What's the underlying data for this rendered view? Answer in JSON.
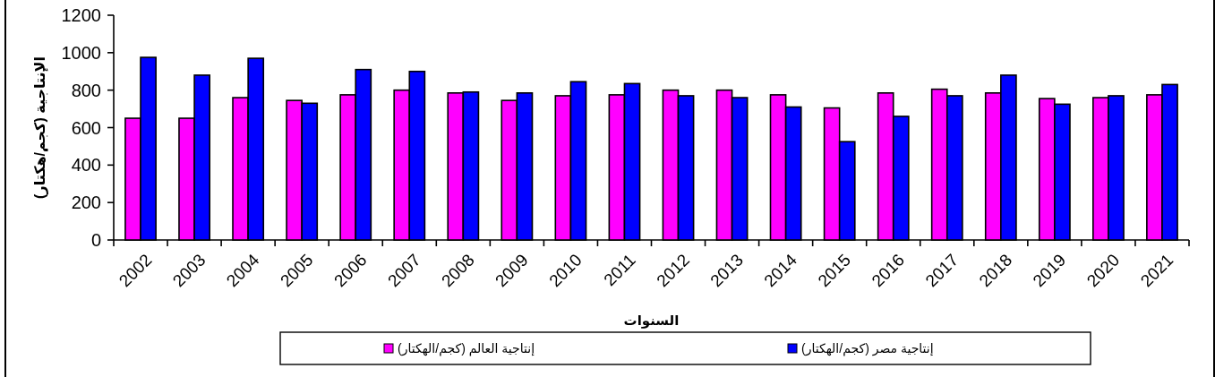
{
  "chart_data": {
    "type": "bar",
    "categories": [
      "2002",
      "2003",
      "2004",
      "2005",
      "2006",
      "2007",
      "2008",
      "2009",
      "2010",
      "2011",
      "2012",
      "2013",
      "2014",
      "2015",
      "2016",
      "2017",
      "2018",
      "2019",
      "2020",
      "2021"
    ],
    "series": [
      {
        "name": "إنتاجية العالم (كجم/الهكتار)",
        "color": "#ff00ff",
        "values": [
          650,
          650,
          760,
          745,
          775,
          800,
          785,
          745,
          770,
          775,
          800,
          800,
          775,
          705,
          785,
          805,
          785,
          755,
          760,
          775
        ]
      },
      {
        "name": "إنتاجية مصر (كجم/الهكتار)",
        "color": "#0000ff",
        "values": [
          975,
          880,
          970,
          730,
          910,
          900,
          790,
          785,
          845,
          835,
          770,
          760,
          710,
          525,
          660,
          770,
          880,
          725,
          770,
          830
        ]
      }
    ],
    "xlabel": "السنوات",
    "ylabel": "الإنتاجية (كجم/هكتار)",
    "ylim": [
      0,
      1200
    ],
    "yticks": [
      0,
      200,
      400,
      600,
      800,
      1000,
      1200
    ],
    "legend": "bottom"
  }
}
